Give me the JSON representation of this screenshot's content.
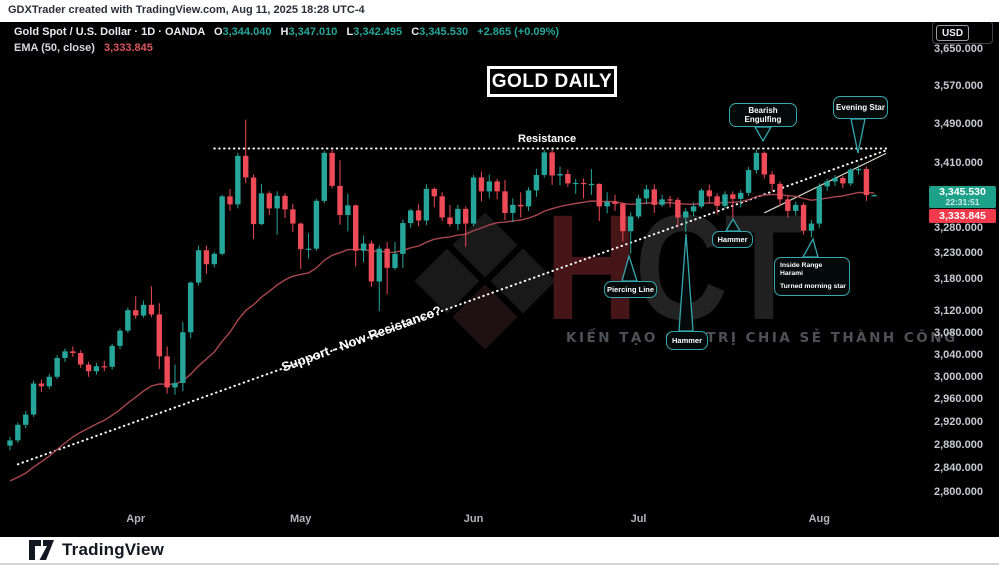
{
  "header": {
    "text": "GDXTrader created with TradingView.com, Aug 11, 2025 18:28 UTC-4"
  },
  "legend": {
    "title": "Gold Spot / U.S. Dollar · 1D · OANDA",
    "ohlc": [
      {
        "k": "O",
        "v": "3,344.040"
      },
      {
        "k": "H",
        "v": "3,347.010"
      },
      {
        "k": "L",
        "v": "3,342.495"
      },
      {
        "k": "C",
        "v": "3,345.530"
      }
    ],
    "change": "+2.865 (+0.09%)",
    "ema_label": "EMA (50, close)",
    "ema_value": "3,333.845"
  },
  "annotations": {
    "title": "GOLD DAILY",
    "resistance": "Resistance",
    "support": "Support - Now Resistance?",
    "callouts": {
      "bearish": "Bearish Engulfing",
      "evening": "Evening Star",
      "hammer1": "Hammer",
      "piercing": "Piercing Line",
      "hammer2": "Hammer",
      "inside_line1": "Inside Range Harami",
      "inside_line2": "Turned morning star"
    }
  },
  "price_axis": {
    "currency": "USD",
    "labels": [
      "3,650.000",
      "3,570.000",
      "3,490.000",
      "3,410.000",
      "3,280.000",
      "3,230.000",
      "3,180.000",
      "3,120.000",
      "3,080.000",
      "3,040.000",
      "3,000.000",
      "2,960.000",
      "2,920.000",
      "2,880.000",
      "2,840.000",
      "2,800.000"
    ]
  },
  "badges": {
    "price": "3,345.530",
    "countdown": "22:31:51",
    "ema": "3,333.845"
  },
  "watermark": {
    "letter_h": "H",
    "letter_c": "C",
    "letter_t": "T",
    "tagline": "KIẾN TẠO GIÁ TRỊ   CHIA SẺ THÀNH CÔNG"
  },
  "footer": {
    "brand": "TradingView"
  },
  "chart_data": {
    "type": "candlestick",
    "title": "GOLD DAILY",
    "symbol": "Gold Spot / U.S. Dollar (OANDA)",
    "timeframe": "1D",
    "y_axis": {
      "scale": "log",
      "ticks": [
        3650,
        3570,
        3490,
        3410,
        3280,
        3230,
        3180,
        3120,
        3080,
        3040,
        3000,
        2960,
        2920,
        2880,
        2840,
        2800
      ]
    },
    "x_axis": {
      "months": [
        {
          "label": "Apr",
          "index": 16
        },
        {
          "label": "May",
          "index": 37
        },
        {
          "label": "Jun",
          "index": 59
        },
        {
          "label": "Jul",
          "index": 80
        },
        {
          "label": "Aug",
          "index": 103
        }
      ]
    },
    "candles": [
      [
        2880,
        2895,
        2872,
        2889
      ],
      [
        2889,
        2920,
        2885,
        2916
      ],
      [
        2916,
        2940,
        2910,
        2934
      ],
      [
        2934,
        2994,
        2930,
        2989
      ],
      [
        2989,
        2996,
        2974,
        2984
      ],
      [
        2984,
        3006,
        2979,
        3001
      ],
      [
        3001,
        3040,
        2997,
        3035
      ],
      [
        3035,
        3052,
        3028,
        3047
      ],
      [
        3047,
        3056,
        3037,
        3044
      ],
      [
        3044,
        3049,
        3017,
        3023
      ],
      [
        3023,
        3028,
        3001,
        3011
      ],
      [
        3011,
        3026,
        3005,
        3020
      ],
      [
        3020,
        3030,
        3011,
        3019
      ],
      [
        3019,
        3061,
        3014,
        3057
      ],
      [
        3057,
        3089,
        3051,
        3085
      ],
      [
        3085,
        3128,
        3081,
        3123
      ],
      [
        3123,
        3149,
        3107,
        3113
      ],
      [
        3113,
        3141,
        3109,
        3133
      ],
      [
        3133,
        3168,
        3110,
        3115
      ],
      [
        3115,
        3136,
        3015,
        3038
      ],
      [
        3038,
        3056,
        2971,
        2982
      ],
      [
        2982,
        3023,
        2969,
        2990
      ],
      [
        2990,
        3101,
        2975,
        3082
      ],
      [
        3082,
        3177,
        3071,
        3175
      ],
      [
        3175,
        3246,
        3169,
        3237
      ],
      [
        3237,
        3246,
        3192,
        3210
      ],
      [
        3210,
        3234,
        3204,
        3230
      ],
      [
        3230,
        3346,
        3227,
        3343
      ],
      [
        3343,
        3358,
        3314,
        3327
      ],
      [
        3327,
        3431,
        3319,
        3425
      ],
      [
        3425,
        3500,
        3369,
        3381
      ],
      [
        3381,
        3387,
        3259,
        3288
      ],
      [
        3288,
        3368,
        3286,
        3349
      ],
      [
        3349,
        3353,
        3306,
        3319
      ],
      [
        3319,
        3353,
        3267,
        3344
      ],
      [
        3344,
        3349,
        3300,
        3317
      ],
      [
        3317,
        3328,
        3273,
        3289
      ],
      [
        3289,
        3291,
        3201,
        3239
      ],
      [
        3239,
        3270,
        3221,
        3240
      ],
      [
        3240,
        3338,
        3236,
        3334
      ],
      [
        3334,
        3435,
        3329,
        3431
      ],
      [
        3431,
        3439,
        3359,
        3364
      ],
      [
        3364,
        3416,
        3287,
        3306
      ],
      [
        3306,
        3348,
        3274,
        3325
      ],
      [
        3325,
        3327,
        3206,
        3236
      ],
      [
        3236,
        3266,
        3214,
        3250
      ],
      [
        3250,
        3256,
        3167,
        3177
      ],
      [
        3177,
        3246,
        3121,
        3240
      ],
      [
        3240,
        3253,
        3153,
        3203
      ],
      [
        3203,
        3253,
        3199,
        3230
      ],
      [
        3230,
        3297,
        3203,
        3290
      ],
      [
        3290,
        3318,
        3281,
        3315
      ],
      [
        3315,
        3327,
        3284,
        3295
      ],
      [
        3295,
        3367,
        3286,
        3358
      ],
      [
        3358,
        3361,
        3321,
        3343
      ],
      [
        3343,
        3351,
        3294,
        3301
      ],
      [
        3301,
        3326,
        3283,
        3288
      ],
      [
        3288,
        3326,
        3276,
        3318
      ],
      [
        3318,
        3323,
        3244,
        3289
      ],
      [
        3289,
        3386,
        3284,
        3381
      ],
      [
        3381,
        3393,
        3333,
        3353
      ],
      [
        3353,
        3387,
        3339,
        3373
      ],
      [
        3373,
        3378,
        3337,
        3353
      ],
      [
        3353,
        3376,
        3296,
        3310
      ],
      [
        3310,
        3339,
        3292,
        3326
      ],
      [
        3326,
        3351,
        3301,
        3323
      ],
      [
        3323,
        3361,
        3314,
        3355
      ],
      [
        3355,
        3399,
        3342,
        3386
      ],
      [
        3386,
        3437,
        3381,
        3432
      ],
      [
        3432,
        3438,
        3366,
        3385
      ],
      [
        3385,
        3403,
        3365,
        3388
      ],
      [
        3388,
        3397,
        3362,
        3369
      ],
      [
        3369,
        3378,
        3348,
        3370
      ],
      [
        3370,
        3379,
        3339,
        3368
      ],
      [
        3368,
        3398,
        3346,
        3368
      ],
      [
        3368,
        3369,
        3294,
        3323
      ],
      [
        3323,
        3351,
        3309,
        3332
      ],
      [
        3332,
        3346,
        3314,
        3328
      ],
      [
        3328,
        3331,
        3254,
        3274
      ],
      [
        3274,
        3311,
        3230,
        3303
      ],
      [
        3303,
        3346,
        3299,
        3339
      ],
      [
        3339,
        3366,
        3327,
        3357
      ],
      [
        3357,
        3367,
        3310,
        3326
      ],
      [
        3326,
        3346,
        3322,
        3337
      ],
      [
        3337,
        3344,
        3321,
        3336
      ],
      [
        3336,
        3341,
        3282,
        3301
      ],
      [
        3301,
        3319,
        3272,
        3313
      ],
      [
        3313,
        3331,
        3304,
        3323
      ],
      [
        3323,
        3359,
        3319,
        3355
      ],
      [
        3355,
        3367,
        3330,
        3343
      ],
      [
        3343,
        3349,
        3308,
        3324
      ],
      [
        3324,
        3353,
        3319,
        3347
      ],
      [
        3347,
        3353,
        3300,
        3338
      ],
      [
        3338,
        3356,
        3321,
        3350
      ],
      [
        3350,
        3402,
        3344,
        3396
      ],
      [
        3396,
        3438,
        3389,
        3431
      ],
      [
        3431,
        3434,
        3379,
        3387
      ],
      [
        3387,
        3394,
        3354,
        3368
      ],
      [
        3368,
        3373,
        3324,
        3337
      ],
      [
        3337,
        3346,
        3301,
        3314
      ],
      [
        3314,
        3332,
        3305,
        3326
      ],
      [
        3326,
        3331,
        3267,
        3275
      ],
      [
        3275,
        3296,
        3262,
        3289
      ],
      [
        3289,
        3369,
        3281,
        3363
      ],
      [
        3363,
        3378,
        3354,
        3373
      ],
      [
        3373,
        3386,
        3364,
        3380
      ],
      [
        3380,
        3384,
        3359,
        3369
      ],
      [
        3369,
        3400,
        3364,
        3397
      ],
      [
        3397,
        3406,
        3387,
        3398
      ],
      [
        3398,
        3403,
        3334,
        3345.5
      ],
      [
        3344,
        3347,
        3342.5,
        3345.5
      ]
    ],
    "ema": {
      "period": 50,
      "last_value": 3333.845
    },
    "lines": {
      "resistance": {
        "style": "dotted",
        "price": 3440,
        "from_index": 26,
        "to_index": 112
      },
      "support": {
        "style": "dotted",
        "from": {
          "index": 1,
          "price": 2848
        },
        "to": {
          "index": 111.8,
          "price": 3438
        }
      },
      "trendline": {
        "style": "solid",
        "from": {
          "index": 96,
          "price": 3310
        },
        "to": {
          "index": 111.5,
          "price": 3430
        }
      }
    },
    "colors": {
      "up": "#26a69a",
      "down": "#ef4a57",
      "ema": "#a8464d",
      "annotation": "#35a7ae"
    }
  }
}
